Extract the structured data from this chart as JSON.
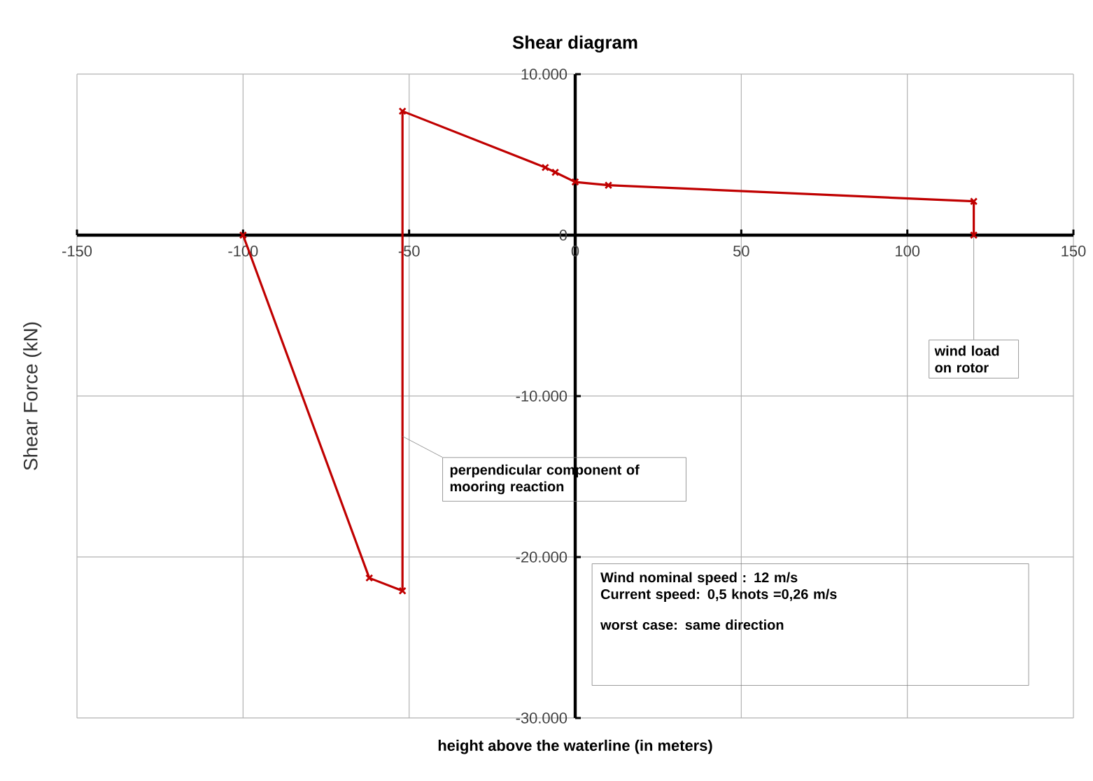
{
  "chart_data": {
    "type": "line",
    "title": "Shear diagram",
    "xlabel": "height above the waterline (in meters)",
    "ylabel": "Shear Force (kN)",
    "series": [
      {
        "color": "#c00000",
        "x": [
          -100,
          -62,
          -52,
          -52,
          -9,
          -6,
          0,
          10,
          120,
          120
        ],
        "values": [
          0,
          -21300,
          -22100,
          7700,
          4200,
          3900,
          3300,
          3100,
          2100,
          0
        ]
      }
    ],
    "xlim": [
      -150,
      150
    ],
    "xticks": [
      -150,
      -100,
      -50,
      0,
      50,
      100,
      150
    ],
    "ylim": [
      -30000,
      10000
    ],
    "yticks": [
      {
        "value": -30000,
        "label": "-30.000"
      },
      {
        "value": -20000,
        "label": "-20.000"
      },
      {
        "value": -10000,
        "label": "-10.000"
      },
      0,
      {
        "value": 10000,
        "label": "10.000"
      }
    ],
    "grid": true,
    "marker": "cross",
    "line_style": "solid",
    "annotations": [
      {
        "text": "wind load on rotor",
        "x": 120,
        "y": 0
      },
      {
        "text": "perpendicular component of mooring reaction",
        "x": -52,
        "y": -12500
      },
      "Wind nominal speed : 12 m/s",
      "Current speed: 0,5 knots =0,26 m/s",
      "worst case: same direction"
    ]
  }
}
